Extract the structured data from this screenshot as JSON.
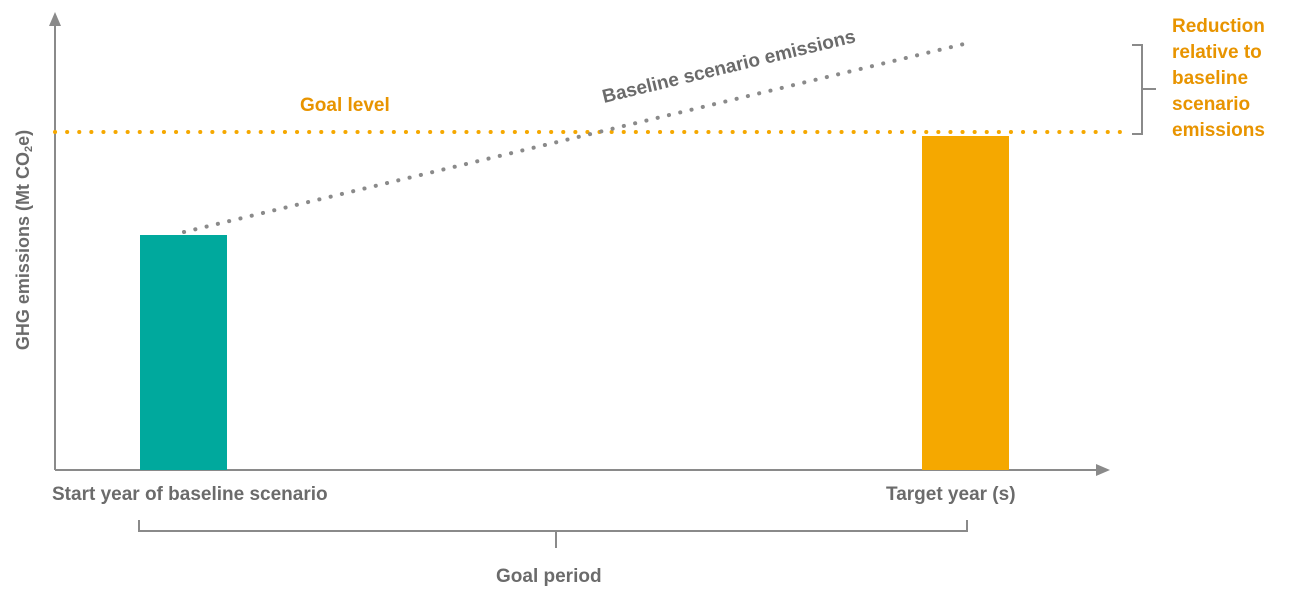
{
  "diagram": {
    "y_axis_label_main": "GHG emissions (Mt CO",
    "y_axis_label_sub": "2",
    "y_axis_label_end": "e)",
    "goal_level_label": "Goal level",
    "baseline_label": "Baseline scenario emissions",
    "reduction_label_lines": [
      "Reduction",
      "relative to",
      "baseline",
      "scenario",
      "emissions"
    ],
    "start_label": "Start year of baseline scenario",
    "target_label": "Target year (s)",
    "goal_period_label": "Goal period"
  },
  "colors": {
    "axis": "#8a8a8a",
    "text": "#6b6b6b",
    "start_bar": "#00a99d",
    "target_bar": "#f5a800",
    "goal_line": "#f5a800",
    "baseline_line": "#8a8a8a",
    "reduction_text": "#e89400"
  }
}
